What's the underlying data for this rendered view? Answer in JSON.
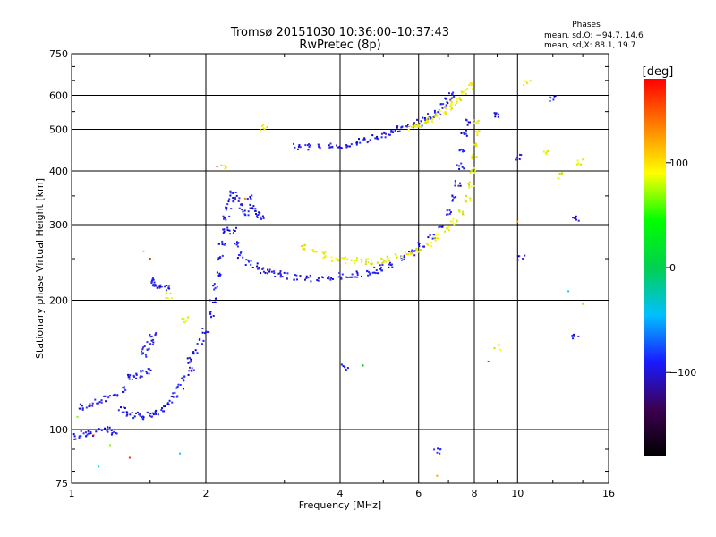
{
  "chart_data": {
    "type": "scatter",
    "title": "Tromsø 20151030 10:36:00–10:37:43",
    "subtitle": "RwPretec (8p)",
    "xlabel": "Frequency [MHz]",
    "ylabel": "Stationary phase Virtual Height [km]",
    "x_scale": "log",
    "y_scale": "log",
    "xlim": [
      1,
      16
    ],
    "ylim": [
      75,
      750
    ],
    "x_ticks": [
      "1",
      "2",
      "4",
      "6",
      "8",
      "10",
      "16"
    ],
    "y_ticks": [
      "75",
      "100",
      "200",
      "300",
      "400",
      "500",
      "600",
      "750"
    ],
    "grid": true,
    "legend": {
      "title": "Phases",
      "line1": "mean, sd,O: −94.7, 14.6",
      "line2": "mean, sd,X:  88.1, 19.7",
      "placement": "top-right"
    },
    "colorbar": {
      "label": "[deg]",
      "ticks": [
        "100",
        "0",
        "−100"
      ],
      "range": [
        -180,
        180
      ],
      "colors": [
        "#000000",
        "#3c0050",
        "#1a1aff",
        "#00c0ff",
        "#00d050",
        "#00ff00",
        "#ffff00",
        "#ff8000",
        "#ff0000"
      ]
    },
    "series": [
      {
        "polarity": "O",
        "points": [
          [
            1.03,
            96
          ],
          [
            1.06,
            98
          ],
          [
            1.1,
            98
          ],
          [
            1.15,
            99
          ],
          [
            1.2,
            100
          ],
          [
            1.25,
            98
          ],
          [
            1.05,
            113
          ],
          [
            1.1,
            114
          ],
          [
            1.15,
            116
          ],
          [
            1.2,
            118
          ],
          [
            1.25,
            121
          ],
          [
            1.3,
            124
          ],
          [
            1.3,
            111
          ],
          [
            1.35,
            109
          ],
          [
            1.4,
            108
          ],
          [
            1.45,
            107
          ],
          [
            1.5,
            108
          ],
          [
            1.55,
            110
          ],
          [
            1.6,
            112
          ],
          [
            1.65,
            115
          ],
          [
            1.7,
            120
          ],
          [
            1.75,
            126
          ],
          [
            1.8,
            132
          ],
          [
            1.85,
            139
          ],
          [
            1.35,
            132
          ],
          [
            1.4,
            133
          ],
          [
            1.45,
            135
          ],
          [
            1.48,
            137
          ],
          [
            1.45,
            150
          ],
          [
            1.47,
            155
          ],
          [
            1.5,
            160
          ],
          [
            1.52,
            165
          ],
          [
            1.5,
            222
          ],
          [
            1.52,
            219
          ],
          [
            1.55,
            217
          ],
          [
            1.6,
            215
          ],
          [
            1.65,
            213
          ],
          [
            1.85,
            145
          ],
          [
            1.9,
            152
          ],
          [
            1.95,
            160
          ],
          [
            2.0,
            170
          ],
          [
            2.05,
            185
          ],
          [
            2.08,
            200
          ],
          [
            2.1,
            215
          ],
          [
            2.12,
            230
          ],
          [
            2.15,
            250
          ],
          [
            2.18,
            270
          ],
          [
            2.2,
            290
          ],
          [
            2.22,
            310
          ],
          [
            2.25,
            330
          ],
          [
            2.28,
            345
          ],
          [
            2.3,
            290
          ],
          [
            2.35,
            270
          ],
          [
            2.4,
            255
          ],
          [
            2.5,
            245
          ],
          [
            2.6,
            240
          ],
          [
            2.7,
            235
          ],
          [
            2.8,
            233
          ],
          [
            2.9,
            230
          ],
          [
            3.0,
            228
          ],
          [
            3.2,
            226
          ],
          [
            3.4,
            225
          ],
          [
            3.6,
            225
          ],
          [
            3.8,
            226
          ],
          [
            4.0,
            228
          ],
          [
            4.2,
            229
          ],
          [
            4.4,
            230
          ],
          [
            4.6,
            232
          ],
          [
            4.8,
            235
          ],
          [
            5.0,
            238
          ],
          [
            5.2,
            242
          ],
          [
            5.5,
            250
          ],
          [
            5.8,
            258
          ],
          [
            6.1,
            268
          ],
          [
            6.4,
            280
          ],
          [
            6.7,
            295
          ],
          [
            7.0,
            320
          ],
          [
            7.2,
            345
          ],
          [
            7.35,
            375
          ],
          [
            7.45,
            410
          ],
          [
            7.55,
            450
          ],
          [
            7.62,
            490
          ],
          [
            7.68,
            520
          ],
          [
            2.3,
            360
          ],
          [
            2.35,
            345
          ],
          [
            2.4,
            330
          ],
          [
            2.45,
            320
          ],
          [
            2.5,
            345
          ],
          [
            2.55,
            330
          ],
          [
            2.6,
            320
          ],
          [
            2.65,
            310
          ],
          [
            3.2,
            456
          ],
          [
            3.4,
            455
          ],
          [
            3.6,
            455
          ],
          [
            3.8,
            456
          ],
          [
            4.0,
            458
          ],
          [
            4.2,
            462
          ],
          [
            4.4,
            468
          ],
          [
            4.6,
            474
          ],
          [
            4.8,
            480
          ],
          [
            5.0,
            487
          ],
          [
            5.2,
            493
          ],
          [
            5.4,
            500
          ],
          [
            5.6,
            506
          ],
          [
            5.8,
            512
          ],
          [
            6.0,
            518
          ],
          [
            6.2,
            525
          ],
          [
            6.4,
            535
          ],
          [
            6.6,
            548
          ],
          [
            6.8,
            565
          ],
          [
            7.0,
            582
          ],
          [
            7.1,
            600
          ],
          [
            9.0,
            540
          ],
          [
            10.0,
            430
          ],
          [
            10.2,
            250
          ],
          [
            13.5,
            310
          ],
          [
            13.5,
            165
          ],
          [
            12.0,
            590
          ],
          [
            4.1,
            140
          ],
          [
            6.6,
            89
          ]
        ]
      },
      {
        "polarity": "X",
        "points": [
          [
            3.3,
            265
          ],
          [
            3.5,
            260
          ],
          [
            3.7,
            255
          ],
          [
            3.9,
            250
          ],
          [
            4.1,
            248
          ],
          [
            4.3,
            247
          ],
          [
            4.5,
            246
          ],
          [
            4.7,
            246
          ],
          [
            4.9,
            247
          ],
          [
            5.1,
            249
          ],
          [
            5.4,
            252
          ],
          [
            5.7,
            256
          ],
          [
            6.0,
            262
          ],
          [
            6.3,
            270
          ],
          [
            6.6,
            280
          ],
          [
            6.9,
            292
          ],
          [
            7.2,
            305
          ],
          [
            7.5,
            322
          ],
          [
            7.7,
            345
          ],
          [
            7.85,
            372
          ],
          [
            7.95,
            400
          ],
          [
            8.0,
            430
          ],
          [
            8.05,
            460
          ],
          [
            8.08,
            490
          ],
          [
            8.1,
            520
          ],
          [
            5.8,
            505
          ],
          [
            6.0,
            512
          ],
          [
            6.2,
            520
          ],
          [
            6.4,
            528
          ],
          [
            6.6,
            538
          ],
          [
            6.8,
            550
          ],
          [
            7.0,
            562
          ],
          [
            7.2,
            575
          ],
          [
            7.4,
            590
          ],
          [
            7.6,
            610
          ],
          [
            7.8,
            630
          ],
          [
            2.7,
            505
          ],
          [
            2.2,
            410
          ],
          [
            1.65,
            205
          ],
          [
            1.8,
            180
          ],
          [
            11.5,
            440
          ],
          [
            12.5,
            390
          ],
          [
            13.8,
            420
          ],
          [
            10.5,
            640
          ],
          [
            9.0,
            155
          ]
        ]
      },
      {
        "polarity": "other",
        "points": [
          [
            1.45,
            260
          ],
          [
            1.5,
            250
          ],
          [
            1.03,
            107
          ],
          [
            1.12,
            97
          ],
          [
            1.22,
            92
          ],
          [
            1.35,
            86
          ],
          [
            1.75,
            88
          ],
          [
            2.12,
            410
          ],
          [
            2.45,
            345
          ],
          [
            10.0,
            305
          ],
          [
            13.0,
            210
          ],
          [
            14.0,
            196
          ],
          [
            6.6,
            78
          ],
          [
            8.6,
            144
          ],
          [
            4.5,
            141
          ],
          [
            1.15,
            82
          ]
        ]
      }
    ]
  }
}
